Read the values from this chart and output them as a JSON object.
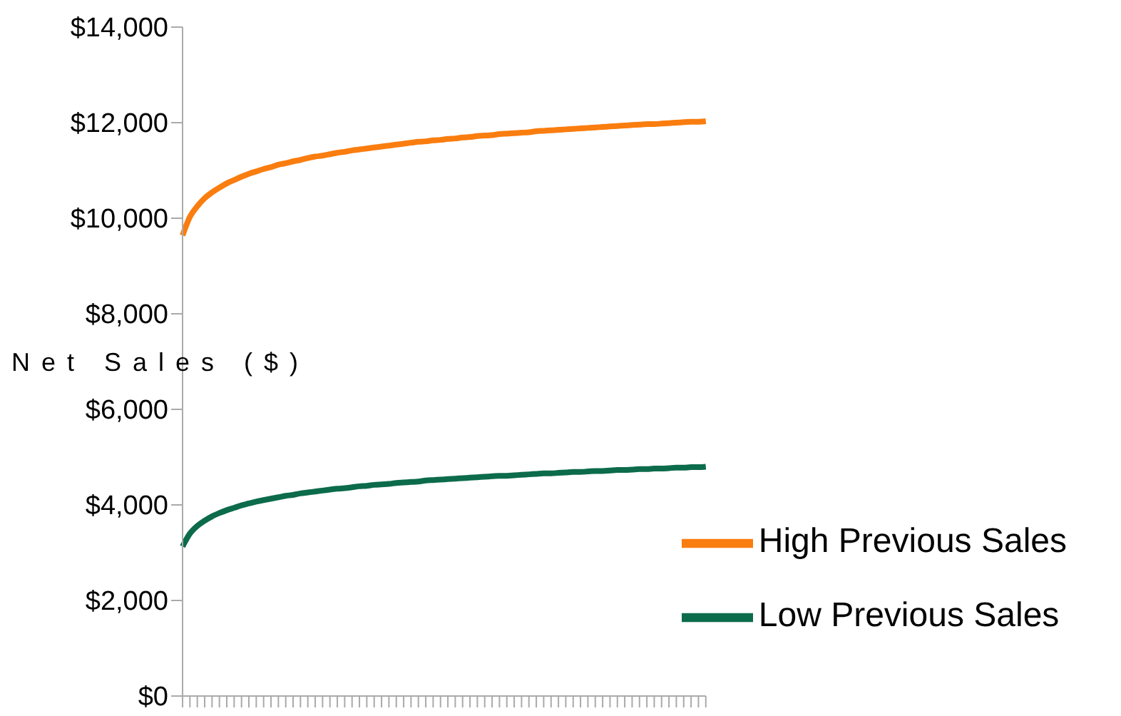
{
  "chart_data": {
    "type": "line",
    "ylabel": "Net Sales ($)",
    "categories": [
      null,
      null,
      null,
      null,
      null,
      null,
      null,
      null,
      null,
      null,
      null,
      null,
      null,
      null,
      null,
      null,
      null,
      null,
      null,
      null,
      null,
      null,
      null,
      null,
      null,
      null,
      null,
      null,
      null,
      null,
      null,
      null,
      null,
      null,
      null,
      null,
      null,
      null,
      null,
      null,
      null,
      null,
      null,
      null,
      null,
      null,
      null,
      null,
      null,
      null,
      null,
      null,
      null,
      null,
      null,
      null,
      null,
      null,
      null,
      null,
      null,
      null,
      null,
      null,
      null,
      null,
      null,
      null,
      null,
      null,
      null,
      null
    ],
    "series": [
      {
        "name": "High Previous Sales",
        "color": "#fa7d0f",
        "values": [
          9640,
          10030,
          10250,
          10420,
          10540,
          10640,
          10730,
          10800,
          10870,
          10930,
          10980,
          11030,
          11070,
          11120,
          11150,
          11190,
          11220,
          11260,
          11290,
          11310,
          11340,
          11370,
          11390,
          11420,
          11440,
          11460,
          11480,
          11500,
          11520,
          11540,
          11560,
          11580,
          11600,
          11610,
          11630,
          11640,
          11660,
          11670,
          11690,
          11700,
          11720,
          11730,
          11740,
          11760,
          11770,
          11780,
          11790,
          11800,
          11820,
          11830,
          11840,
          11850,
          11860,
          11870,
          11880,
          11890,
          11900,
          11910,
          11920,
          11930,
          11940,
          11950,
          11960,
          11970,
          11970,
          11980,
          11990,
          12000,
          12010,
          12020,
          12020,
          12030
        ]
      },
      {
        "name": "Low Previous Sales",
        "color": "#0c6b4b",
        "values": [
          3130,
          3400,
          3560,
          3670,
          3760,
          3830,
          3890,
          3940,
          3990,
          4030,
          4070,
          4100,
          4130,
          4160,
          4190,
          4210,
          4240,
          4260,
          4280,
          4300,
          4320,
          4340,
          4350,
          4370,
          4390,
          4400,
          4420,
          4430,
          4440,
          4460,
          4470,
          4480,
          4490,
          4510,
          4520,
          4530,
          4540,
          4550,
          4560,
          4570,
          4580,
          4590,
          4600,
          4610,
          4610,
          4620,
          4630,
          4640,
          4650,
          4660,
          4660,
          4670,
          4680,
          4690,
          4690,
          4700,
          4710,
          4710,
          4720,
          4730,
          4730,
          4740,
          4750,
          4750,
          4760,
          4760,
          4770,
          4780,
          4780,
          4790,
          4790,
          4800
        ]
      }
    ],
    "ylim": [
      0,
      14000
    ],
    "yticks": [
      {
        "value": 0,
        "label": "$0"
      },
      {
        "value": 2000,
        "label": "$2,000"
      },
      {
        "value": 4000,
        "label": "$4,000"
      },
      {
        "value": 6000,
        "label": "$6,000"
      },
      {
        "value": 8000,
        "label": "$8,000"
      },
      {
        "value": 10000,
        "label": "$10,000"
      },
      {
        "value": 12000,
        "label": "$12,000"
      },
      {
        "value": 14000,
        "label": "$14,000"
      }
    ],
    "grid": false,
    "legend": "bottom right",
    "marker": "none",
    "line_style": "solid",
    "tick_labels": "y"
  }
}
